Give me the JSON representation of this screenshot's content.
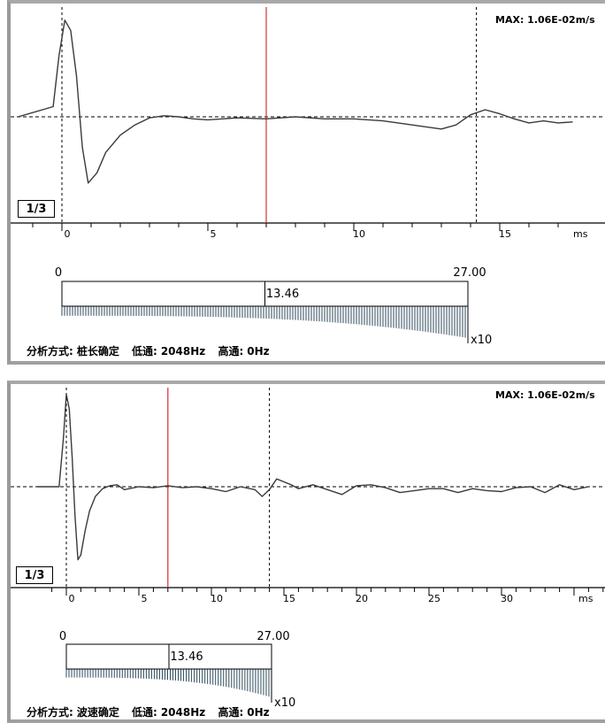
{
  "panels": [
    {
      "chart_data": {
        "type": "line",
        "max_label": "MAX: 1.06E-02m/s",
        "ratio_label": "1/3",
        "xlim": [
          -1,
          17
        ],
        "x_ticks": [
          "0",
          "5",
          "10",
          "15"
        ],
        "x_unit": "ms",
        "markers": {
          "start_ms": 0,
          "red_ms": 7.0,
          "end_ms": 14.2
        },
        "series": [
          {
            "x": [
              -1.5,
              -0.3,
              -0.1,
              0.1,
              0.3,
              0.5,
              0.7,
              0.9,
              1.2,
              1.5,
              2.0,
              2.5,
              3.0,
              3.5,
              4.0,
              4.5,
              5.0,
              6.0,
              7.0,
              8.0,
              9.0,
              10.0,
              11.0,
              12.0,
              13.0,
              13.5,
              14.0,
              14.5,
              15.0,
              15.5,
              16.0,
              16.5,
              17.0,
              17.5
            ],
            "y": [
              0,
              0.1,
              0.6,
              0.95,
              0.85,
              0.4,
              -0.3,
              -0.65,
              -0.55,
              -0.35,
              -0.18,
              -0.08,
              -0.01,
              0.01,
              0,
              -0.02,
              -0.03,
              -0.01,
              -0.02,
              0,
              -0.02,
              -0.02,
              -0.04,
              -0.08,
              -0.12,
              -0.08,
              0.02,
              0.07,
              0.03,
              -0.02,
              -0.06,
              -0.04,
              -0.06,
              -0.05
            ]
          }
        ],
        "scale_bar": {
          "start": "0",
          "end": "27.00",
          "mid": "13.46",
          "unit": "x10"
        }
      },
      "footer": {
        "mode_label": "分析方式:",
        "mode_value": "桩长确定",
        "low_label": "低通:",
        "low_value": "2048Hz",
        "high_label": "高通:",
        "high_value": "0Hz"
      }
    },
    {
      "chart_data": {
        "type": "line",
        "max_label": "MAX: 1.06E-02m/s",
        "ratio_label": "1/3",
        "xlim": [
          -1,
          37
        ],
        "x_ticks": [
          "0",
          "5",
          "10",
          "15",
          "20",
          "25",
          "30"
        ],
        "x_unit": "ms",
        "markers": {
          "start_ms": 0,
          "red_ms": 7.0,
          "end_ms": 14.0
        },
        "series": [
          {
            "x": [
              -2.0,
              -0.5,
              -0.2,
              0,
              0.2,
              0.4,
              0.6,
              0.8,
              1.0,
              1.3,
              1.6,
              2.0,
              2.5,
              3.0,
              3.5,
              4.0,
              5.0,
              6.0,
              7.0,
              8.0,
              9.0,
              10.0,
              11.0,
              12.0,
              13.0,
              13.5,
              14.0,
              14.5,
              15.0,
              15.5,
              16.0,
              17.0,
              18.0,
              19.0,
              20.0,
              21.0,
              22.0,
              23.0,
              24.0,
              25.0,
              26.0,
              27.0,
              28.0,
              29.0,
              30.0,
              31.0,
              32.0,
              33.0,
              34.0,
              35.0,
              36.0
            ],
            "y": [
              0,
              0,
              0.5,
              0.95,
              0.8,
              0.3,
              -0.3,
              -0.75,
              -0.7,
              -0.45,
              -0.25,
              -0.1,
              -0.02,
              0.01,
              0.02,
              -0.03,
              0,
              -0.01,
              0.01,
              -0.01,
              0,
              -0.02,
              -0.05,
              0,
              -0.03,
              -0.1,
              -0.03,
              0.08,
              0.05,
              0.02,
              -0.02,
              0.02,
              -0.03,
              -0.08,
              0.01,
              0.02,
              -0.01,
              -0.06,
              -0.04,
              -0.02,
              -0.02,
              -0.06,
              -0.02,
              -0.04,
              -0.05,
              -0.01,
              0,
              -0.06,
              0.02,
              -0.03,
              0
            ]
          }
        ],
        "scale_bar": {
          "start": "0",
          "end": "27.00",
          "mid": "13.46",
          "unit": "x10"
        }
      },
      "footer": {
        "mode_label": "分析方式:",
        "mode_value": "波速确定",
        "low_label": "低通:",
        "low_value": "2048Hz",
        "high_label": "高通:",
        "high_value": "0Hz"
      }
    }
  ]
}
